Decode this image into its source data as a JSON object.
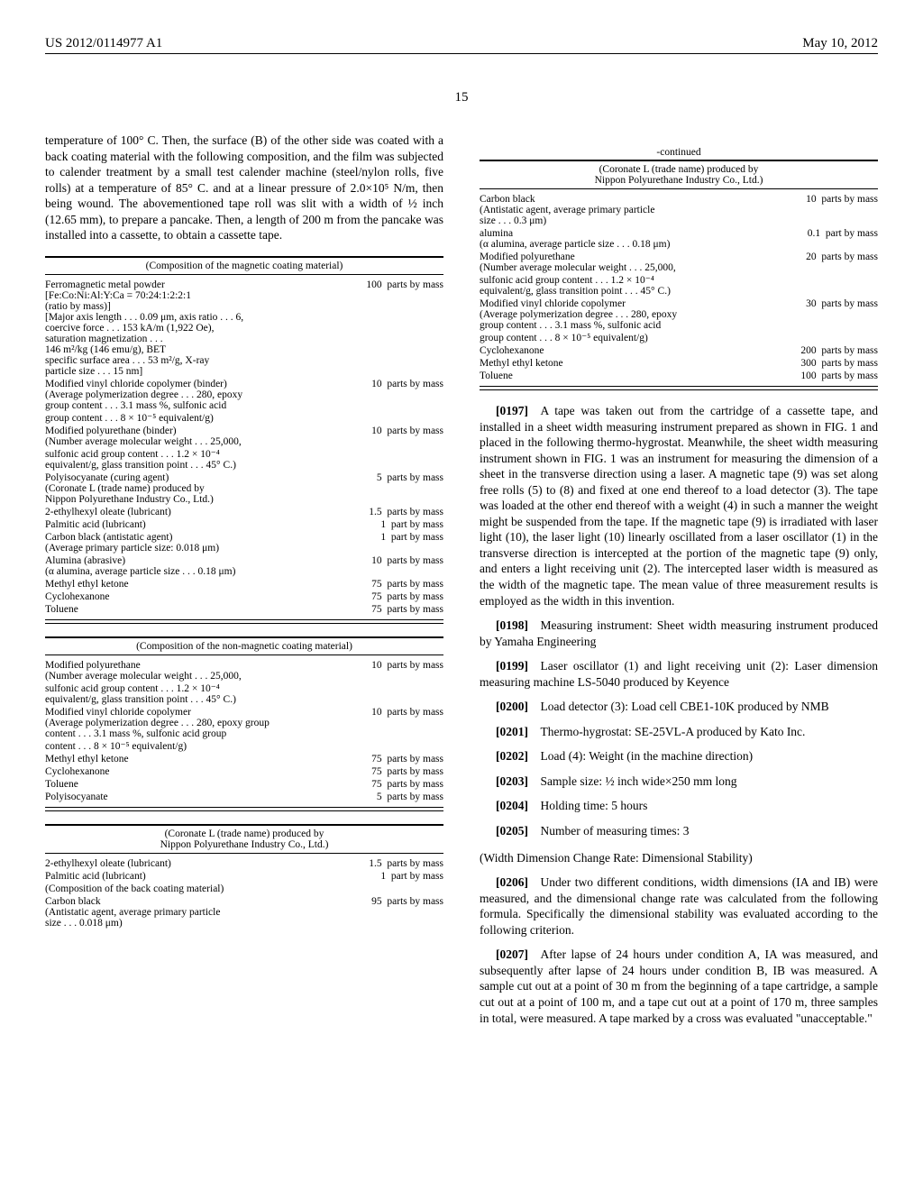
{
  "header": {
    "left": "US 2012/0114977 A1",
    "right": "May 10, 2012"
  },
  "page_number": "15",
  "left_column": {
    "intro_text": "temperature of 100° C. Then, the surface (B) of the other side was coated with a back coating material with the following composition, and the film was subjected to calender treatment by a small test calender machine (steel/nylon rolls, five rolls) at a temperature of 85° C. and at a linear pressure of 2.0×10⁵ N/m, then being wound. The abovementioned tape roll was slit with a width of ½ inch (12.65 mm), to prepare a pancake. Then, a length of 200 m from the pancake was installed into a cassette, to obtain a cassette tape.",
    "table1": {
      "title": "(Composition of the magnetic coating material)",
      "rows": [
        {
          "label": "Ferromagnetic metal powder\n[Fe:Co:Ni:Al:Y:Ca = 70:24:1:2:2:1\n(ratio by mass)]\n[Major axis length . . . 0.09 μm, axis ratio . . . 6,\ncoercive force . . . 153 kA/m (1,922 Oe),\nsaturation magnetization . . .\n146 m²/kg (146 emu/g), BET\nspecific surface area . . . 53 m²/g, X-ray\nparticle size . . . 15 nm]",
          "value": "100",
          "unit": "parts by mass"
        },
        {
          "label": "Modified vinyl chloride copolymer (binder)\n(Average polymerization degree . . . 280, epoxy\ngroup content . . . 3.1 mass %, sulfonic acid\ngroup content . . . 8 × 10⁻⁵ equivalent/g)",
          "value": "10",
          "unit": "parts by mass"
        },
        {
          "label": "Modified polyurethane (binder)\n(Number average molecular weight . . . 25,000,\nsulfonic acid group content . . . 1.2 × 10⁻⁴\nequivalent/g, glass transition point . . . 45° C.)",
          "value": "10",
          "unit": "parts by mass"
        },
        {
          "label": "Polyisocyanate (curing agent)\n(Coronate L (trade name) produced by\nNippon Polyurethane Industry Co., Ltd.)",
          "value": "5",
          "unit": "parts by mass"
        },
        {
          "label": "2-ethylhexyl oleate (lubricant)",
          "value": "1.5",
          "unit": "parts by mass"
        },
        {
          "label": "Palmitic acid (lubricant)",
          "value": "1",
          "unit": "part by mass"
        },
        {
          "label": "Carbon black (antistatic agent)\n(Average primary particle size: 0.018 μm)",
          "value": "1",
          "unit": "part by mass"
        },
        {
          "label": "Alumina (abrasive)\n(α alumina, average particle size . . . 0.18 μm)",
          "value": "10",
          "unit": "parts by mass"
        },
        {
          "label": "Methyl ethyl ketone",
          "value": "75",
          "unit": "parts by mass"
        },
        {
          "label": "Cyclohexanone",
          "value": "75",
          "unit": "parts by mass"
        },
        {
          "label": "Toluene",
          "value": "75",
          "unit": "parts by mass"
        }
      ]
    },
    "table2": {
      "title": "(Composition of the non-magnetic coating material)",
      "rows": [
        {
          "label": "Modified polyurethane\n(Number average molecular weight . . . 25,000,\nsulfonic acid group content . . . 1.2 × 10⁻⁴\nequivalent/g, glass transition point . . . 45° C.)",
          "value": "10",
          "unit": "parts by mass"
        },
        {
          "label": "Modified vinyl chloride copolymer\n(Average polymerization degree . . . 280, epoxy group\ncontent . . . 3.1 mass %, sulfonic acid group\ncontent . . . 8 × 10⁻⁵ equivalent/g)",
          "value": "10",
          "unit": "parts by mass"
        },
        {
          "label": "Methyl ethyl ketone",
          "value": "75",
          "unit": "parts by mass"
        },
        {
          "label": "Cyclohexanone",
          "value": "75",
          "unit": "parts by mass"
        },
        {
          "label": "Toluene",
          "value": "75",
          "unit": "parts by mass"
        },
        {
          "label": "Polyisocyanate",
          "value": "5",
          "unit": "parts by mass"
        }
      ]
    },
    "table3": {
      "title": "(Coronate L (trade name) produced by\nNippon Polyurethane Industry Co., Ltd.)",
      "rows": [
        {
          "label": "2-ethylhexyl oleate (lubricant)",
          "value": "1.5",
          "unit": "parts by mass"
        },
        {
          "label": "Palmitic acid (lubricant)",
          "value": "1",
          "unit": "part by mass"
        },
        {
          "label": "(Composition of the back coating material)",
          "value": "",
          "unit": ""
        },
        {
          "label": "Carbon black\n(Antistatic agent, average primary particle\nsize . . . 0.018 μm)",
          "value": "95",
          "unit": "parts by mass"
        }
      ]
    }
  },
  "right_column": {
    "table_cont": {
      "continued": "-continued",
      "title": "(Coronate L (trade name) produced by\nNippon Polyurethane Industry Co., Ltd.)",
      "rows": [
        {
          "label": "Carbon black\n(Antistatic agent, average primary particle\nsize . . . 0.3 μm)",
          "value": "10",
          "unit": "parts by mass"
        },
        {
          "label": "alumina\n(α alumina, average particle size . . . 0.18 μm)",
          "value": "0.1",
          "unit": "part by mass"
        },
        {
          "label": "Modified polyurethane\n(Number average molecular weight . . . 25,000,\nsulfonic acid group content . . . 1.2 × 10⁻⁴\nequivalent/g, glass transition point . . . 45° C.)",
          "value": "20",
          "unit": "parts by mass"
        },
        {
          "label": "Modified vinyl chloride copolymer\n(Average polymerization degree . . . 280, epoxy\ngroup content . . . 3.1 mass %, sulfonic acid\ngroup content . . . 8 × 10⁻⁵ equivalent/g)",
          "value": "30",
          "unit": "parts by mass"
        },
        {
          "label": "Cyclohexanone",
          "value": "200",
          "unit": "parts by mass"
        },
        {
          "label": "Methyl ethyl ketone",
          "value": "300",
          "unit": "parts by mass"
        },
        {
          "label": "Toluene",
          "value": "100",
          "unit": "parts by mass"
        }
      ]
    },
    "paragraphs": [
      {
        "num": "[0197]",
        "text": "A tape was taken out from the cartridge of a cassette tape, and installed in a sheet width measuring instrument prepared as shown in FIG. 1 and placed in the following thermo-hygrostat. Meanwhile, the sheet width measuring instrument shown in FIG. 1 was an instrument for measuring the dimension of a sheet in the transverse direction using a laser. A magnetic tape (9) was set along free rolls (5) to (8) and fixed at one end thereof to a load detector (3). The tape was loaded at the other end thereof with a weight (4) in such a manner the weight might be suspended from the tape. If the magnetic tape (9) is irradiated with laser light (10), the laser light (10) linearly oscillated from a laser oscillator (1) in the transverse direction is intercepted at the portion of the magnetic tape (9) only, and enters a light receiving unit (2). The intercepted laser width is measured as the width of the magnetic tape. The mean value of three measurement results is employed as the width in this invention."
      },
      {
        "num": "[0198]",
        "text": "Measuring instrument: Sheet width measuring instrument produced by Yamaha Engineering"
      },
      {
        "num": "[0199]",
        "text": "Laser oscillator (1) and light receiving unit (2): Laser dimension measuring machine LS-5040 produced by Keyence"
      },
      {
        "num": "[0200]",
        "text": "Load detector (3): Load cell CBE1-10K produced by NMB"
      },
      {
        "num": "[0201]",
        "text": "Thermo-hygrostat: SE-25VL-A produced by Kato Inc."
      },
      {
        "num": "[0202]",
        "text": "Load (4): Weight (in the machine direction)"
      },
      {
        "num": "[0203]",
        "text": "Sample size: ½ inch wide×250 mm long"
      },
      {
        "num": "[0204]",
        "text": "Holding time: 5 hours"
      },
      {
        "num": "[0205]",
        "text": "Number of measuring times: 3"
      }
    ],
    "section_heading": "(Width Dimension Change Rate: Dimensional Stability)",
    "paragraphs2": [
      {
        "num": "[0206]",
        "text": "Under two different conditions, width dimensions (IA and IB) were measured, and the dimensional change rate was calculated from the following formula. Specifically the dimensional stability was evaluated according to the following criterion."
      },
      {
        "num": "[0207]",
        "text": "After lapse of 24 hours under condition A, IA was measured, and subsequently after lapse of 24 hours under condition B, IB was measured. A sample cut out at a point of 30 m from the beginning of a tape cartridge, a sample cut out at a point of 100 m, and a tape cut out at a point of 170 m, three samples in total, were measured. A tape marked by a cross was evaluated \"unacceptable.\""
      }
    ]
  }
}
